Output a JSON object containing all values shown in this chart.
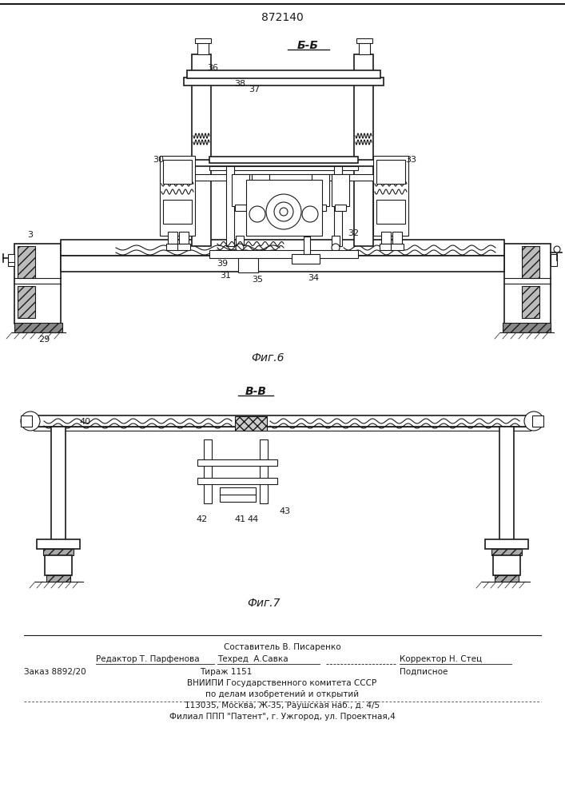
{
  "patent_number": "872140",
  "fig6_label": "Б-Б",
  "fig6_caption": "Фиг.6",
  "fig7_label": "В-В",
  "fig7_caption": "Фиг.7",
  "footer_line1": "Составитель В. Писаренко",
  "footer_line2_left": "Редактор Т. Парфенова",
  "footer_line2_mid": "Техред  А.Савка",
  "footer_line2_right": "Корректор Н. Стец",
  "footer_line3_left": "Заказ 8892/20",
  "footer_line3_mid": "Тираж 1151",
  "footer_line3_right": "Подписное",
  "footer_line4": "ВНИИПИ Государственного комитета СССР",
  "footer_line5": "по делам изобретений и открытий",
  "footer_line6": "113035, Москва, Ж-35, Раушская наб., д. 4/5",
  "footer_line7": "Филиал ППП \"Патент\", г. Ужгород, ул. Проектная,4",
  "bg_color": "#ffffff",
  "line_color": "#1a1a1a"
}
